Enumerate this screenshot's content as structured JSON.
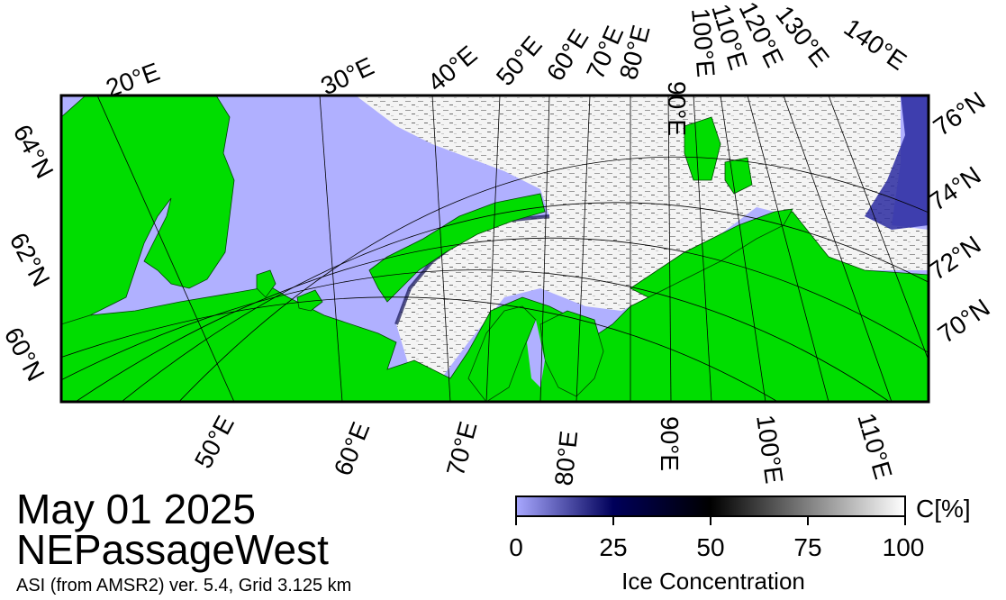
{
  "title": {
    "date": "May 01 2025",
    "region": "NEPassageWest",
    "source": "ASI (from AMSR2) ver. 5.4,  Grid 3.125 km"
  },
  "map": {
    "top_longitude_labels": [
      "20°E",
      "30°E",
      "40°E",
      "50°E",
      "60°E",
      "70°E",
      "80°E",
      "90°E",
      "100°E",
      "110°E",
      "120°E",
      "130°E",
      "140°E"
    ],
    "bottom_longitude_labels": [
      "50°E",
      "60°E",
      "70°E",
      "80°E",
      "90°E",
      "100°E",
      "110°E"
    ],
    "left_latitude_labels": [
      "64°N",
      "62°N",
      "60°N"
    ],
    "right_latitude_labels": [
      "76°N",
      "74°N",
      "72°N",
      "70°N"
    ],
    "colors": {
      "land": "#00dd00",
      "open_water": "#b0b0ff",
      "ice_high": "#ffffff",
      "ice_mid": "#000000",
      "ice_low": "#00004f",
      "graticule": "#000000"
    }
  },
  "colorbar": {
    "label": "Ice Concentration",
    "unit": "C[%]",
    "ticks": [
      "0",
      "25",
      "50",
      "75",
      "100"
    ],
    "range": [
      0,
      100
    ],
    "gradient": [
      "#a8a8ff",
      "#00005a",
      "#000000",
      "#808080",
      "#ffffff"
    ]
  }
}
